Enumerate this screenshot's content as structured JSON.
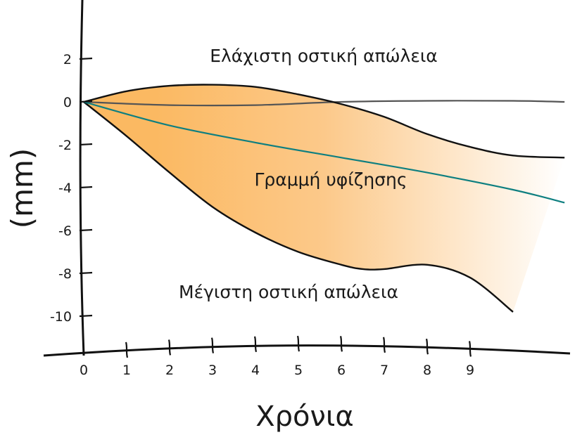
{
  "chart_data": {
    "type": "area",
    "xlabel": "Χρόνια",
    "ylabel": "(mm)",
    "xlim": [
      0,
      11.5
    ],
    "ylim": [
      -11.5,
      4
    ],
    "x_ticks": [
      0,
      1,
      2,
      3,
      4,
      5,
      6,
      7,
      8,
      9
    ],
    "y_ticks": [
      2,
      0,
      -2,
      -4,
      -6,
      -8,
      -10
    ],
    "annotations": {
      "min_loss": "Ελάχιστη οστική απώλεια",
      "regression": "Γραμμή υφίζησης",
      "max_loss": "Μέγιστη οστική απώλεια"
    },
    "series": [
      {
        "role": "upper-bound",
        "x": [
          0,
          1,
          2,
          3,
          4,
          5,
          6,
          7,
          8,
          9,
          10,
          11.2
        ],
        "values": [
          0,
          0.5,
          0.75,
          0.8,
          0.7,
          0.35,
          -0.1,
          -0.7,
          -1.5,
          -2.1,
          -2.5,
          -2.6
        ]
      },
      {
        "role": "regression-line",
        "x": [
          0,
          2,
          4,
          6,
          8,
          10,
          11.2
        ],
        "values": [
          0,
          -1.1,
          -1.9,
          -2.6,
          -3.3,
          -4.1,
          -4.7
        ]
      },
      {
        "role": "lower-bound",
        "x": [
          0,
          1,
          2,
          3,
          4,
          5,
          6,
          6.5,
          7,
          8,
          9,
          10
        ],
        "values": [
          0,
          -1.6,
          -3.3,
          -4.9,
          -6.1,
          -7.0,
          -7.6,
          -7.8,
          -7.8,
          -7.6,
          -8.2,
          -9.8
        ]
      },
      {
        "role": "baseline",
        "x": [
          0,
          2,
          4,
          6,
          8,
          10,
          11.2
        ],
        "values": [
          0,
          -0.15,
          -0.15,
          0,
          0.05,
          0.05,
          0
        ]
      }
    ],
    "colors": {
      "band_start": "#fbb962",
      "band_end": "#ffffff",
      "regression": "#0e7f80",
      "bounds": "#111111",
      "baseline": "#555555",
      "axis": "#111111"
    },
    "grid": false,
    "legend": "none"
  }
}
